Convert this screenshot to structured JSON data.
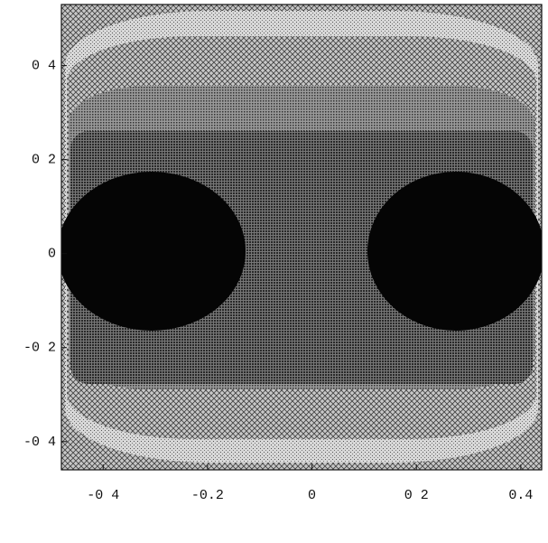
{
  "chart_data": {
    "type": "contour",
    "xlim": [
      -0.48,
      0.44
    ],
    "ylim": [
      -0.46,
      0.53
    ],
    "xticks": [
      {
        "value": -0.4,
        "label": "-0 4"
      },
      {
        "value": -0.2,
        "label": "-0.2"
      },
      0,
      {
        "value": 0.2,
        "label": "0 2"
      },
      {
        "value": 0.4,
        "label": "0.4"
      }
    ],
    "yticks": [
      {
        "value": -0.4,
        "label": "-0 4"
      },
      {
        "value": -0.2,
        "label": "-0 2"
      },
      0,
      {
        "value": 0.2,
        "label": "0 2"
      },
      {
        "value": 0.4,
        "label": "0 4"
      }
    ]
  }
}
